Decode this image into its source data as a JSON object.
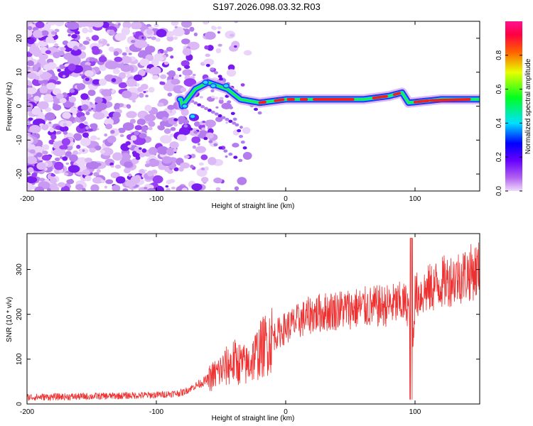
{
  "title": "S197.2026.098.03.32.R03",
  "chart_data": [
    {
      "type": "heatmap",
      "name": "spectrogram",
      "xlabel": "Height of straight line (km)",
      "ylabel": "Frequency (Hz)",
      "xlim": [
        -200,
        150
      ],
      "ylim": [
        -25,
        25
      ],
      "xticks": [
        -200,
        -100,
        0,
        100
      ],
      "yticks": [
        -20,
        -10,
        0,
        10,
        20
      ],
      "colorbar": {
        "label": "Normalized spectral amplitude",
        "range": [
          0,
          1
        ],
        "ticks": [
          0.0,
          0.2,
          0.4,
          0.6,
          0.8
        ],
        "tick_labels": [
          "0.0",
          "0.2",
          "0.4",
          "0.6",
          "0.8"
        ],
        "colors": [
          "#e8c8f8",
          "#8800ff",
          "#0000ff",
          "#00ffff",
          "#00ff00",
          "#ffff00",
          "#ff0000",
          "#ff00aa"
        ]
      },
      "ridge": {
        "description": "Main spectral line near +2 Hz for heights above -20 km",
        "points": [
          [
            -80,
            0
          ],
          [
            -70,
            5
          ],
          [
            -60,
            7
          ],
          [
            -45,
            5
          ],
          [
            -35,
            2
          ],
          [
            -20,
            1
          ],
          [
            0,
            2
          ],
          [
            20,
            2
          ],
          [
            60,
            2
          ],
          [
            80,
            3
          ],
          [
            90,
            4
          ],
          [
            95,
            1
          ],
          [
            120,
            2
          ],
          [
            150,
            2
          ]
        ]
      }
    },
    {
      "type": "line",
      "name": "snr",
      "xlabel": "Height of straight line (km)",
      "ylabel": "SNR (10 * v/v)",
      "xlim": [
        -200,
        150
      ],
      "ylim": [
        0,
        380
      ],
      "xticks": [
        -200,
        -100,
        0,
        100
      ],
      "yticks": [
        0,
        100,
        200,
        300
      ],
      "color": "#ee3030",
      "trend_x": [
        -200,
        -150,
        -100,
        -80,
        -60,
        -50,
        -40,
        -30,
        -20,
        -10,
        0,
        20,
        40,
        60,
        80,
        90,
        95,
        97,
        100,
        120,
        150
      ],
      "trend_y": [
        15,
        17,
        20,
        25,
        55,
        75,
        95,
        85,
        120,
        150,
        170,
        200,
        210,
        215,
        220,
        225,
        220,
        60,
        240,
        270,
        300
      ]
    }
  ]
}
